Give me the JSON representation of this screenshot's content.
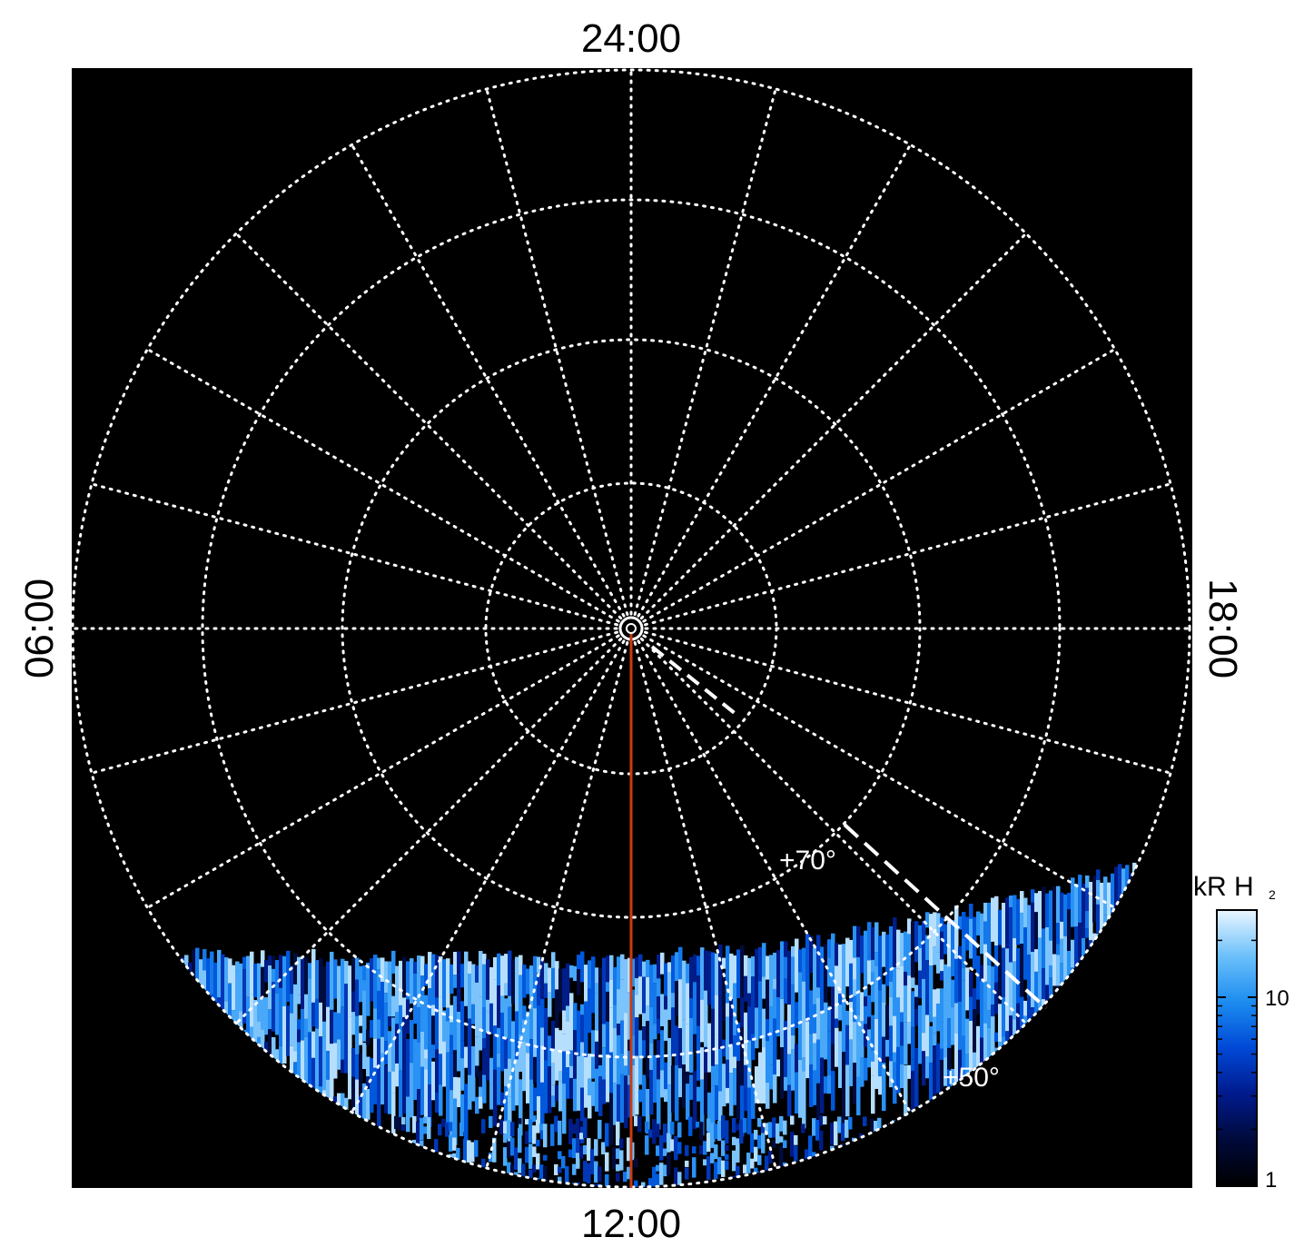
{
  "local_time_labels": {
    "top": "24:00",
    "bottom": "12:00",
    "left": "06:00",
    "right": "18:00"
  },
  "latitude_labels": {
    "inner": "+70°",
    "outer": "+50°"
  },
  "colorbar": {
    "title": "kR H",
    "subscript": "2",
    "ticks": [
      "10",
      "1"
    ],
    "scale": "log",
    "gradient": [
      "#000000",
      "#000a3a",
      "#001a8c",
      "#0048d6",
      "#1c8cf0",
      "#6cc0fa",
      "#eaf6ff"
    ]
  },
  "colors": {
    "background": "#000000",
    "grid": "#ffffff",
    "meridian": "#cc3a12",
    "dashed_track": "#ffffff"
  }
}
